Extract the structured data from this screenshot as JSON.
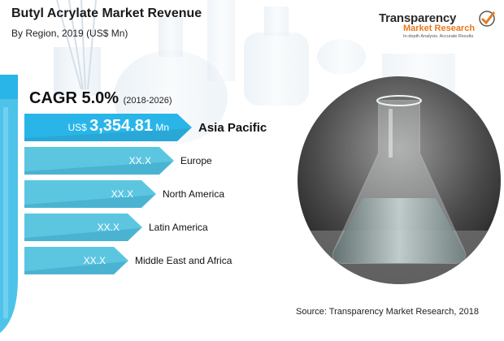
{
  "header": {
    "title": "Butyl Acrylate Market Revenue",
    "subtitle": "By Region, 2019 (US$ Mn)"
  },
  "logo": {
    "line1": "Transparency",
    "line2": "Market Research",
    "line3": "In-depth Analysis. Accurate Results"
  },
  "cagr": {
    "label": "CAGR 5.0%",
    "period": "(2018-2026)"
  },
  "chart_data": {
    "type": "bar",
    "categories": [
      "Asia Pacific",
      "Europe",
      "North America",
      "Latin America",
      "Middle East and Africa"
    ],
    "value_labels": [
      "3,354.81",
      "XX.X",
      "XX.X",
      "XX.X",
      "XX.X"
    ],
    "values": [
      3354.81,
      null,
      null,
      null,
      null
    ],
    "currency_prefix": "US$",
    "unit_suffix": "Mn"
  },
  "source": "Source: Transparency Market Research, 2018",
  "colors": {
    "bar_hero": "#29b5e8",
    "bar_other": "#4ec1de",
    "bar_shadow": "#2a8fb6",
    "logo_accent": "#e8791e"
  }
}
